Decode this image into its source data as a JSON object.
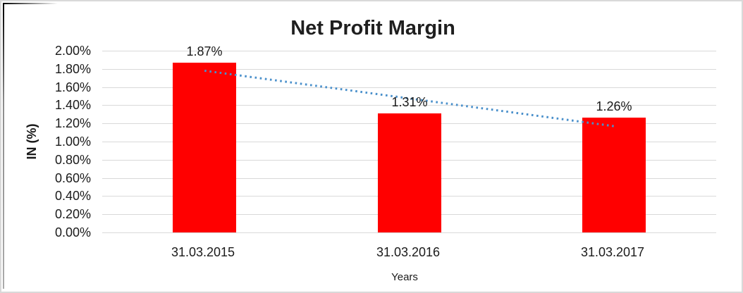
{
  "chart_data": {
    "type": "bar",
    "title": "Net Profit Margin",
    "categories": [
      "31.03.2015",
      "31.03.2016",
      "31.03.2017"
    ],
    "values": [
      1.87,
      1.31,
      1.26
    ],
    "value_labels": [
      "1.87%",
      "1.31%",
      "1.26%"
    ],
    "xlabel": "Years",
    "ylabel": "IN (%)",
    "ylim": [
      0,
      2
    ],
    "ytick_step": 0.2,
    "yticks": [
      "2.00%",
      "1.80%",
      "1.60%",
      "1.40%",
      "1.20%",
      "1.00%",
      "0.80%",
      "0.60%",
      "0.40%",
      "0.20%",
      "0.00%"
    ],
    "grid": true,
    "legend": false,
    "bar_color": "#FF0000",
    "gridline_color": "#D9D9D9",
    "text_color": "#1A1A1A",
    "trendline": {
      "type": "linear",
      "style": "dotted",
      "color": "#4A90CB",
      "start_value": 1.78,
      "end_value": 1.17
    }
  }
}
